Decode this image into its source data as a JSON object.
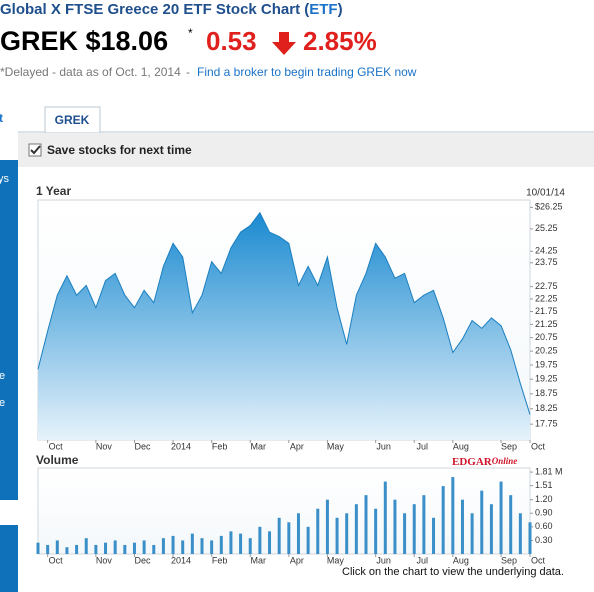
{
  "header": {
    "title_parts": [
      "Global X FTSE Greece 20 ETF Stock Chart (",
      "ETF",
      ")"
    ],
    "quote": "GREK $18.06",
    "asterisk": "*",
    "change": "0.53",
    "change_pct": "2.85%",
    "delayed": "*Delayed - data as of Oct. 1, 2014",
    "separator": "-",
    "broker_link": "Find a broker to begin trading GREK now"
  },
  "sidebar": [
    "t",
    "ys",
    "e",
    "e"
  ],
  "tab": "GREK",
  "save_label": "Save stocks for next time",
  "edgar_logo": [
    "EDGAR",
    "Online"
  ],
  "footer_note": "Click on the chart to view the underlying data.",
  "chart_data": [
    {
      "type": "area",
      "title": "1 Year",
      "date": "10/01/14",
      "color": "#1b7fc0",
      "log_scale": true,
      "categories": [
        null,
        "Oct",
        null,
        null,
        null,
        null,
        "Nov",
        null,
        null,
        null,
        "Dec",
        null,
        null,
        null,
        "2014",
        null,
        null,
        null,
        "Feb",
        null,
        null,
        null,
        "Mar",
        null,
        null,
        null,
        "Apr",
        null,
        null,
        null,
        "May",
        null,
        null,
        null,
        null,
        "Jun",
        null,
        null,
        null,
        "Jul",
        null,
        null,
        null,
        "Aug",
        null,
        null,
        null,
        null,
        "Sep",
        null,
        null,
        "Oct"
      ],
      "values": [
        19.6,
        21.0,
        22.4,
        23.2,
        22.4,
        22.8,
        21.9,
        23.0,
        23.3,
        22.4,
        21.9,
        22.6,
        22.1,
        23.6,
        24.6,
        24.0,
        21.7,
        22.4,
        23.8,
        23.3,
        24.4,
        25.1,
        25.4,
        26.0,
        25.1,
        24.9,
        24.6,
        22.8,
        23.6,
        22.8,
        24.0,
        21.9,
        20.5,
        22.4,
        23.3,
        24.6,
        24.0,
        23.1,
        23.3,
        22.1,
        22.4,
        22.6,
        21.5,
        20.2,
        20.7,
        21.4,
        21.1,
        21.5,
        21.2,
        20.3,
        19.1,
        18.06
      ],
      "ylim": [
        17.25,
        26.6
      ],
      "yticks": [
        17.75,
        18.25,
        18.75,
        19.25,
        19.75,
        20.25,
        20.75,
        21.25,
        21.75,
        22.25,
        22.75,
        23.75,
        24.25,
        25.25,
        {
          "value": 26.25,
          "label": "$26.25"
        }
      ]
    },
    {
      "type": "bar",
      "title": "Volume",
      "color": "#3a8fc9",
      "categories": [
        null,
        "Oct",
        null,
        null,
        null,
        null,
        "Nov",
        null,
        null,
        null,
        "Dec",
        null,
        null,
        null,
        "2014",
        null,
        null,
        null,
        "Feb",
        null,
        null,
        null,
        "Mar",
        null,
        null,
        null,
        "Apr",
        null,
        null,
        null,
        "May",
        null,
        null,
        null,
        null,
        "Jun",
        null,
        null,
        null,
        "Jul",
        null,
        null,
        null,
        "Aug",
        null,
        null,
        null,
        null,
        "Sep",
        null,
        null,
        "Oct"
      ],
      "values": [
        0.25,
        0.2,
        0.3,
        0.15,
        0.2,
        0.35,
        0.2,
        0.25,
        0.3,
        0.2,
        0.25,
        0.3,
        0.2,
        0.35,
        0.4,
        0.3,
        0.45,
        0.35,
        0.3,
        0.4,
        0.5,
        0.45,
        0.35,
        0.6,
        0.5,
        0.8,
        0.7,
        0.9,
        0.6,
        1.0,
        1.2,
        0.8,
        0.9,
        1.1,
        1.3,
        1.0,
        1.6,
        1.2,
        0.9,
        1.1,
        1.3,
        0.8,
        1.5,
        1.7,
        1.2,
        0.9,
        1.4,
        1.1,
        1.6,
        1.3,
        0.9,
        0.7
      ],
      "ylim": [
        0,
        1.9
      ],
      "yticks": [
        {
          "value": 0.3,
          "label": "0.30"
        },
        {
          "value": 0.6,
          "label": "0.60"
        },
        {
          "value": 0.9,
          "label": "0.90"
        },
        {
          "value": 1.2,
          "label": "1.20"
        },
        1.51,
        {
          "value": 1.81,
          "label": "1.81 M"
        }
      ]
    }
  ]
}
